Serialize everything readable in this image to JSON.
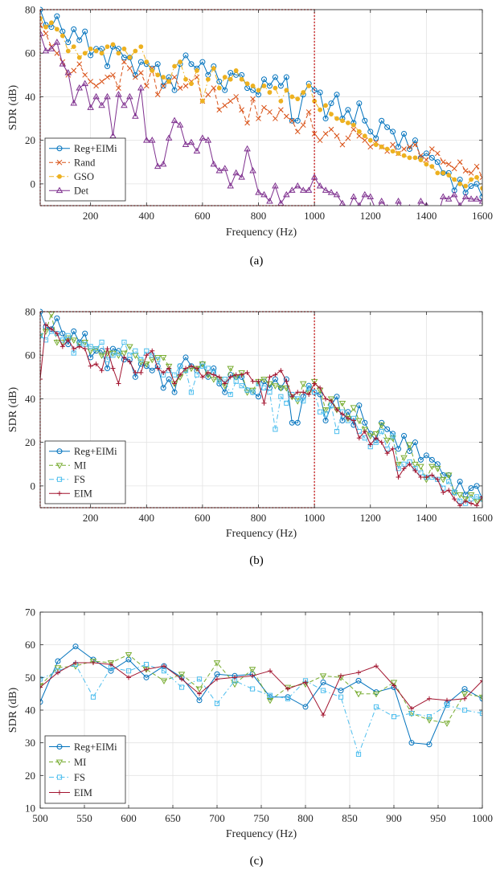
{
  "colors": {
    "Reg+EIMi": "#0072BD",
    "Rand": "#D95319",
    "GSO": "#EDB120",
    "Det": "#7E2F8E",
    "MI": "#77AC30",
    "FS": "#4DBEEE",
    "EIM": "#A2142F",
    "zoom_box": "#C00000"
  },
  "chart_data": [
    {
      "type": "line",
      "caption": "(a)",
      "xlabel": "Frequency (Hz)",
      "ylabel": "SDR (dB)",
      "xlim": [
        20,
        1600
      ],
      "ylim": [
        -10,
        80
      ],
      "xticks": [
        200,
        400,
        600,
        800,
        1000,
        1200,
        1400,
        1600
      ],
      "yticks": [
        0,
        20,
        40,
        60,
        80
      ],
      "grid": true,
      "legend": "bottom-left",
      "zoom_box": {
        "x": [
          20,
          1000
        ],
        "y": [
          -10,
          80
        ]
      },
      "x": [
        20,
        40,
        60,
        80,
        100,
        120,
        140,
        160,
        180,
        200,
        220,
        240,
        260,
        280,
        300,
        320,
        340,
        360,
        380,
        400,
        420,
        440,
        460,
        480,
        500,
        520,
        540,
        560,
        580,
        600,
        620,
        640,
        660,
        680,
        700,
        720,
        740,
        760,
        780,
        800,
        820,
        840,
        860,
        880,
        900,
        920,
        940,
        960,
        980,
        1000,
        1020,
        1040,
        1060,
        1080,
        1100,
        1120,
        1140,
        1160,
        1180,
        1200,
        1220,
        1240,
        1260,
        1280,
        1300,
        1320,
        1340,
        1360,
        1380,
        1400,
        1420,
        1440,
        1460,
        1480,
        1500,
        1520,
        1540,
        1560,
        1580,
        1600
      ],
      "series": [
        {
          "name": "Reg+EIMi",
          "marker": "circle",
          "dash": "solid",
          "values": [
            80,
            73,
            72,
            77,
            70,
            65,
            71,
            66,
            70,
            59,
            62,
            62,
            54,
            63,
            62,
            58,
            58,
            50,
            56,
            55,
            53,
            55,
            45,
            49,
            43,
            55,
            59,
            55,
            53,
            56,
            50,
            54,
            47,
            43,
            51,
            50,
            50,
            44,
            43,
            41,
            48,
            45,
            49,
            45,
            49,
            29,
            29,
            41,
            46,
            43,
            42,
            30,
            37,
            41,
            30,
            34,
            28,
            37,
            29,
            24,
            21,
            29,
            26,
            24,
            17,
            23,
            16,
            20,
            12,
            14,
            12,
            10,
            5,
            5,
            -3,
            2,
            -4,
            -1,
            0,
            -6
          ]
        },
        {
          "name": "Rand",
          "marker": "x",
          "dash": "dashed",
          "values": [
            73,
            69,
            63,
            60,
            56,
            50,
            52,
            55,
            50,
            47,
            45,
            47,
            49,
            50,
            44,
            56,
            53,
            49,
            51,
            45,
            53,
            41,
            45,
            47,
            49,
            44,
            45,
            47,
            49,
            38,
            41,
            44,
            34,
            36,
            38,
            40,
            34,
            28,
            39,
            30,
            35,
            33,
            30,
            34,
            31,
            29,
            24,
            27,
            33,
            23,
            20,
            23,
            25,
            22,
            18,
            21,
            25,
            22,
            20,
            17,
            19,
            17,
            15,
            18,
            14,
            16,
            17,
            18,
            13,
            11,
            16,
            14,
            10,
            9,
            7,
            10,
            6,
            5,
            8,
            3
          ]
        },
        {
          "name": "GSO",
          "marker": "dot",
          "dash": "dashdot",
          "values": [
            76,
            72,
            74,
            71,
            68,
            61,
            63,
            58,
            60,
            62,
            61,
            60,
            63,
            64,
            60,
            62,
            58,
            61,
            63,
            56,
            52,
            50,
            49,
            47,
            54,
            56,
            48,
            46,
            52,
            38,
            48,
            53,
            44,
            49,
            48,
            52,
            48,
            46,
            45,
            43,
            45,
            42,
            44,
            38,
            43,
            40,
            39,
            42,
            45,
            38,
            34,
            36,
            32,
            30,
            29,
            28,
            27,
            24,
            22,
            20,
            18,
            17,
            16,
            15,
            14,
            13,
            12,
            12,
            11,
            9,
            8,
            5,
            5,
            4,
            2,
            0,
            -1,
            2,
            3,
            -2
          ]
        },
        {
          "name": "Det",
          "marker": "triangle",
          "dash": "solid",
          "values": [
            69,
            61,
            62,
            65,
            55,
            51,
            37,
            44,
            46,
            35,
            40,
            36,
            40,
            22,
            41,
            36,
            40,
            31,
            44,
            20,
            20,
            8,
            9,
            21,
            29,
            27,
            18,
            19,
            15,
            21,
            20,
            9,
            6,
            7,
            -1,
            5,
            3,
            16,
            6,
            -4,
            -5,
            -8,
            -1,
            -9,
            -5,
            -3,
            -1,
            -3,
            -3,
            3,
            -1,
            -3,
            -4,
            -5,
            -9,
            -12,
            -6,
            -10,
            -5,
            -6,
            -12,
            -8,
            -11,
            -16,
            -8,
            -12,
            -11,
            -13,
            -8,
            -10,
            -12,
            -15,
            -6,
            -7,
            -5,
            -10,
            -6,
            -7,
            -7,
            -8
          ]
        }
      ]
    },
    {
      "type": "line",
      "caption": "(b)",
      "xlabel": "Frequency (Hz)",
      "ylabel": "SDR (dB)",
      "xlim": [
        20,
        1600
      ],
      "ylim": [
        -10,
        80
      ],
      "xticks": [
        200,
        400,
        600,
        800,
        1000,
        1200,
        1400,
        1600
      ],
      "yticks": [
        0,
        20,
        40,
        60,
        80
      ],
      "grid": true,
      "legend": "bottom-left",
      "zoom_box": {
        "x": [
          20,
          1000
        ],
        "y": [
          -10,
          80
        ]
      },
      "x": [
        20,
        40,
        60,
        80,
        100,
        120,
        140,
        160,
        180,
        200,
        220,
        240,
        260,
        280,
        300,
        320,
        340,
        360,
        380,
        400,
        420,
        440,
        460,
        480,
        500,
        520,
        540,
        560,
        580,
        600,
        620,
        640,
        660,
        680,
        700,
        720,
        740,
        760,
        780,
        800,
        820,
        840,
        860,
        880,
        900,
        920,
        940,
        960,
        980,
        1000,
        1020,
        1040,
        1060,
        1080,
        1100,
        1120,
        1140,
        1160,
        1180,
        1200,
        1220,
        1240,
        1260,
        1280,
        1300,
        1320,
        1340,
        1360,
        1380,
        1400,
        1420,
        1440,
        1460,
        1480,
        1500,
        1520,
        1540,
        1560,
        1580,
        1600
      ],
      "series": [
        {
          "name": "Reg+EIMi",
          "marker": "circle",
          "dash": "solid",
          "values": [
            80,
            73,
            72,
            77,
            70,
            65,
            71,
            66,
            70,
            59,
            62,
            62,
            54,
            63,
            62,
            58,
            58,
            50,
            56,
            55,
            53,
            55,
            45,
            49,
            43,
            55,
            59,
            55,
            53,
            56,
            50,
            54,
            47,
            43,
            51,
            50,
            50,
            44,
            43,
            41,
            48,
            45,
            49,
            45,
            49,
            29,
            29,
            41,
            46,
            43,
            42,
            30,
            37,
            41,
            30,
            34,
            28,
            37,
            29,
            24,
            21,
            29,
            26,
            24,
            17,
            23,
            16,
            20,
            12,
            14,
            12,
            10,
            5,
            5,
            -3,
            2,
            -4,
            -1,
            0,
            -6
          ]
        },
        {
          "name": "MI",
          "marker": "triangle-down",
          "dash": "dashed",
          "values": [
            69,
            71,
            79,
            66,
            66,
            68,
            67,
            65,
            66,
            62,
            63,
            60,
            61,
            61,
            60,
            61,
            64,
            60,
            57,
            56,
            58,
            59,
            59,
            55,
            47,
            50,
            53,
            54,
            54,
            56,
            51,
            49,
            49,
            46,
            54,
            50,
            52,
            43,
            44,
            48,
            49,
            47,
            46,
            45,
            45,
            41,
            39,
            47,
            43,
            48,
            44,
            35,
            40,
            35,
            38,
            31,
            36,
            30,
            26,
            23,
            24,
            28,
            21,
            22,
            10,
            13,
            19,
            10,
            9,
            3,
            9,
            8,
            3,
            5,
            -3,
            -4,
            -6,
            -4,
            -7,
            -6
          ]
        },
        {
          "name": "FS",
          "marker": "square",
          "dash": "dashdot",
          "values": [
            69,
            67,
            71,
            70,
            67,
            69,
            61,
            65,
            65,
            64,
            63,
            66,
            58,
            60,
            61,
            66,
            60,
            62,
            58,
            62,
            60,
            58,
            51,
            53,
            51,
            55,
            53,
            43,
            51,
            55,
            54,
            52,
            48,
            49,
            42,
            48,
            46,
            44,
            43,
            47,
            45,
            43,
            26,
            41,
            38,
            42,
            40,
            39,
            45,
            43,
            34,
            33,
            37,
            25,
            34,
            30,
            31,
            25,
            22,
            18,
            20,
            25,
            17,
            23,
            8,
            10,
            11,
            8,
            6,
            4,
            4,
            3,
            -1,
            2,
            -3,
            -7,
            -8,
            -6,
            -5,
            -6
          ]
        },
        {
          "name": "EIM",
          "marker": "plus",
          "dash": "solid",
          "values": [
            49,
            74,
            72,
            70,
            64,
            67,
            63,
            64,
            63,
            55,
            56,
            53,
            63,
            54,
            47,
            59,
            57,
            52,
            52,
            60,
            62,
            54,
            52,
            54,
            47,
            51,
            54,
            55,
            54,
            50,
            52,
            51,
            50,
            47,
            50,
            51,
            51,
            52,
            48,
            48,
            38,
            50,
            51,
            53,
            48,
            41,
            43,
            43,
            42,
            47,
            45,
            40,
            39,
            35,
            33,
            31,
            30,
            22,
            25,
            19,
            22,
            20,
            15,
            17,
            4,
            8,
            10,
            7,
            4,
            4,
            5,
            3,
            -3,
            -2,
            -6,
            -9,
            -7,
            -8,
            -9,
            -5
          ]
        }
      ]
    },
    {
      "type": "line",
      "caption": "(c)",
      "xlabel": "Frequency (Hz)",
      "ylabel": "SDR (dB)",
      "xlim": [
        500,
        1000
      ],
      "ylim": [
        10,
        70
      ],
      "xticks": [
        500,
        550,
        600,
        650,
        700,
        750,
        800,
        850,
        900,
        950,
        1000
      ],
      "yticks": [
        10,
        20,
        30,
        40,
        50,
        60,
        70
      ],
      "grid": true,
      "legend": "bottom-left",
      "x": [
        500,
        520,
        540,
        560,
        580,
        600,
        620,
        640,
        660,
        680,
        700,
        720,
        740,
        760,
        780,
        800,
        820,
        840,
        860,
        880,
        900,
        920,
        940,
        960,
        980,
        1000
      ],
      "series": [
        {
          "name": "Reg+EIMi",
          "marker": "circle",
          "dash": "solid",
          "values": [
            42.5,
            55,
            59.5,
            55.5,
            52,
            55.5,
            50,
            53.5,
            50,
            43,
            51,
            50.5,
            51,
            44,
            44,
            41,
            48.5,
            46,
            49,
            45.5,
            47,
            30,
            29.5,
            42,
            46.5,
            43.5
          ]
        },
        {
          "name": "MI",
          "marker": "triangle-down",
          "dash": "dashed",
          "values": [
            47.5,
            53,
            53.5,
            55,
            54.5,
            57,
            52.5,
            49,
            51,
            46.5,
            54.5,
            48,
            52.5,
            43,
            47,
            48,
            50.5,
            50,
            45,
            45,
            48.5,
            39,
            37,
            36,
            45,
            44
          ]
        },
        {
          "name": "FS",
          "marker": "square",
          "dash": "dashdot",
          "values": [
            49.5,
            52,
            54,
            44,
            53,
            52,
            54,
            52,
            47,
            49.5,
            42,
            49,
            46.5,
            44.5,
            43.5,
            49,
            46,
            44,
            26.5,
            41,
            38,
            39,
            38,
            41.5,
            40,
            39
          ]
        },
        {
          "name": "EIM",
          "marker": "plus",
          "dash": "solid",
          "values": [
            47,
            51.5,
            54.5,
            54.5,
            54,
            50,
            52.5,
            53.5,
            49.5,
            45,
            49.5,
            50,
            50.5,
            52,
            46.5,
            48.5,
            38.5,
            50.5,
            51.5,
            53.5,
            47.5,
            40.5,
            43.5,
            43,
            43.5,
            49
          ]
        }
      ]
    }
  ]
}
